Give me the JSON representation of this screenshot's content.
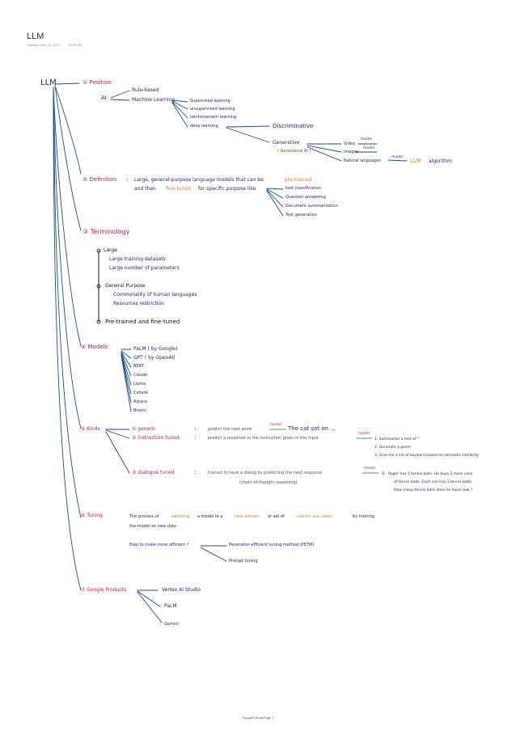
{
  "header": {
    "title": "LLM",
    "date": "Sunday, June 16, 2024",
    "time": "10:29 AM"
  },
  "root": "LLM",
  "s1": {
    "heading": "① Position",
    "ai": "AI",
    "rule_based": "Rule-based",
    "machine_learning": "Machine Learning",
    "ml_types": [
      "Supervised learning",
      "unsupervised learning",
      "reinforcement learning",
      "deep learning"
    ],
    "discriminative": "Discriminative",
    "generative": "Generative",
    "generative_ai": "( Generative AI )",
    "outputs": [
      "Video",
      "Images",
      "Natural languages"
    ],
    "model_labels": [
      "model",
      "model",
      "model"
    ],
    "llm": "LLM",
    "algorithm": "algorithm"
  },
  "s2": {
    "heading": "② Definition",
    "colon": ":",
    "line1_a": "Large, general-purpose language models that can be",
    "line1_b": "pre-trained",
    "line2_a": "and then",
    "line2_b": "fine-tuned",
    "line2_c": "for specific purpose like",
    "purposes": [
      "text classification",
      "Question answering",
      "Document summarization",
      "Text generation"
    ]
  },
  "s3": {
    "heading": "③ Terminology",
    "large": "Large",
    "large_items": [
      "Large training datasets",
      "Large number of parameters"
    ],
    "general": "General Purpose",
    "general_items": [
      "Commonality of human languages",
      "Resources restriction"
    ],
    "pretrained": "Pre-trained and fine-tuned"
  },
  "s4": {
    "heading": "④ Models",
    "models": [
      "PaLM ( by Google)",
      "GPT ( by OpenAI)",
      "BERT",
      "Claude",
      "Llama",
      "Cohere",
      "Alpaca",
      "Bloom"
    ]
  },
  "s5": {
    "heading": "⑤ Kinds",
    "k1": "① generic",
    "k1_desc": "predict the next word",
    "k1_example": "The cat sat on ...",
    "k2": "② instruction tuned",
    "k2_desc": "predict a response to the instruction given in the input",
    "k2_examples": [
      "1. Summarize a text of \"",
      "2. Generate a poem",
      "3. Give me a list of keyword based on semantic similarity"
    ],
    "k3": "③ dialogue tuned",
    "k3_desc1": "trained to have a dialog by predicting the next response",
    "k3_desc2": "(chain-of-thought reasoning)",
    "k3_example": [
      "Q : Roger has 5 tennis balls. He buys 2 more cans",
      "of tennis balls. Each can has 3 tennis balls.",
      "How many tennis balls does he have now ?"
    ],
    "colon": ":",
    "arrow_labels": [
      "model",
      "model",
      "model"
    ]
  },
  "s6": {
    "heading": "⑥ Tuning",
    "line1_a": "The process of",
    "line1_b": "adapting",
    "line1_c": "a model to a",
    "line1_d": "new domain",
    "line1_e": "or set of",
    "line1_f": "custom use cases",
    "line1_g": "by training",
    "line2": "the model on new data",
    "question": "How to make more efficient ?",
    "answers": [
      "Parameter-efficient tuning method (PETM)",
      "Prompt tuning"
    ]
  },
  "s7": {
    "heading": "⑦ Google Products",
    "products": [
      "Vertex AI Studio",
      "PaLM",
      "Gemini"
    ]
  },
  "footer": "Google Cloud Page 1"
}
